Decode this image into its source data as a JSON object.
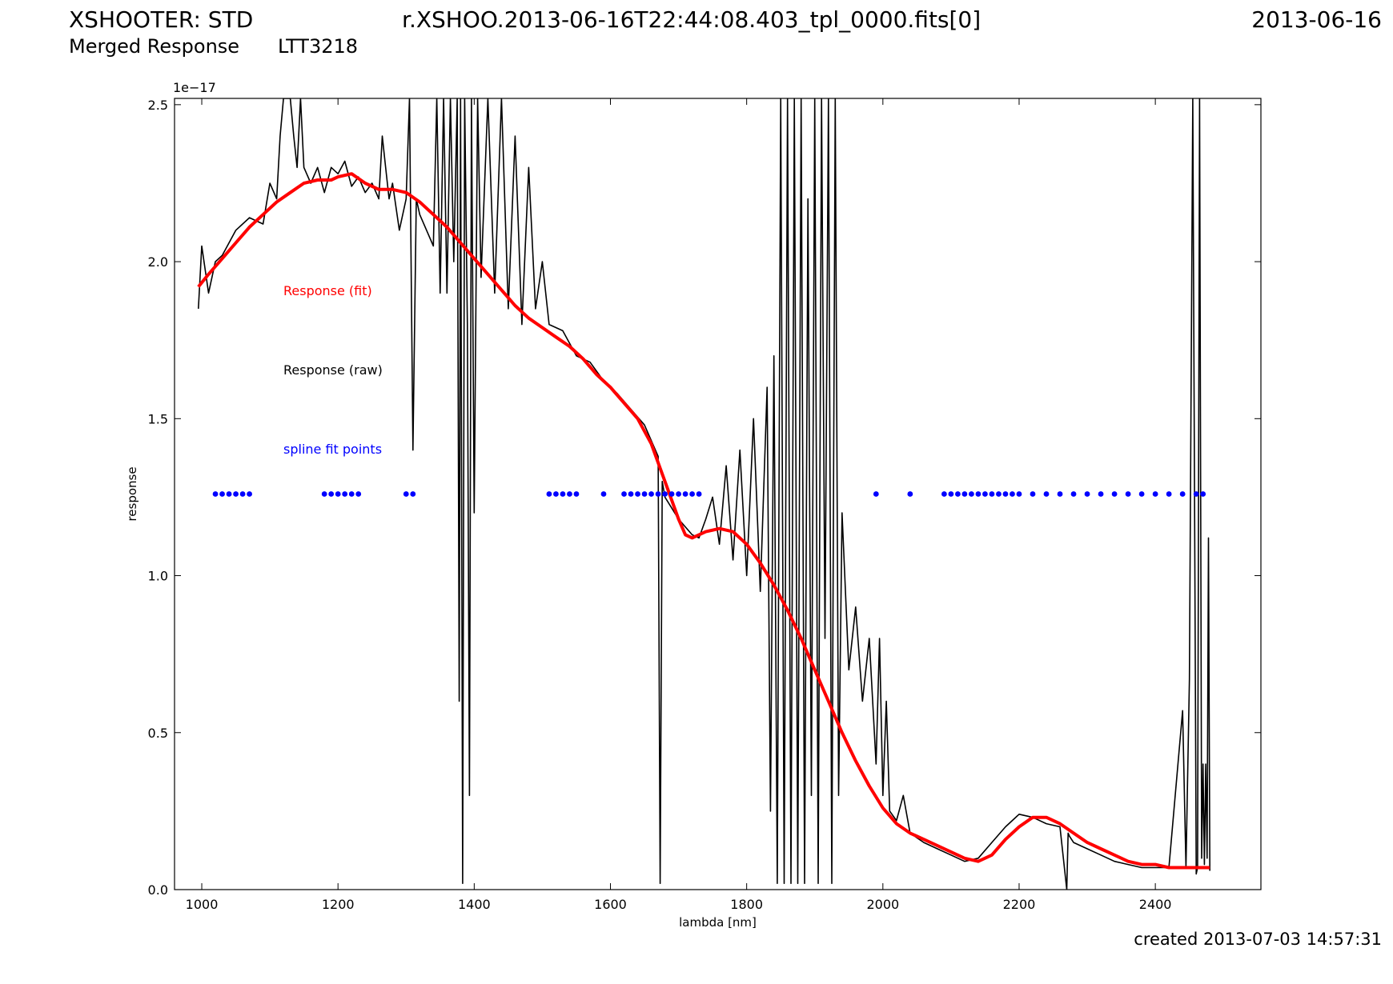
{
  "header": {
    "instrument": "XSHOOTER: STD",
    "filename": "r.XSHOO.2013-06-16T22:44:08.403_tpl_0000.fits[0]",
    "date": "2013-06-16",
    "subtitle": "Merged Response",
    "object": "LTT3218"
  },
  "footer": {
    "created": "created 2013-07-03 14:57:31"
  },
  "colors": {
    "fit": "#ff0000",
    "raw": "#000000",
    "points": "#0000ff"
  },
  "chart_data": {
    "type": "line",
    "xlabel": "lambda [nm]",
    "ylabel": "response",
    "y_multiplier_label": "1e−17",
    "xlim": [
      960,
      2555
    ],
    "ylim": [
      0,
      2.52
    ],
    "xticks": [
      1000,
      1200,
      1400,
      1600,
      1800,
      2000,
      2200,
      2400
    ],
    "yticks": [
      0.0,
      0.5,
      1.0,
      1.5,
      2.0,
      2.5
    ],
    "xtick_labels": [
      "1000",
      "1200",
      "1400",
      "1600",
      "1800",
      "2000",
      "2200",
      "2400"
    ],
    "ytick_labels": [
      "0.0",
      "0.5",
      "1.0",
      "1.5",
      "2.0",
      "2.5"
    ],
    "legend": [
      "Response (fit)",
      "Response (raw)",
      "spline fit points"
    ],
    "series": [
      {
        "name": "Response (fit)",
        "x": [
          995,
          1010,
          1030,
          1050,
          1070,
          1090,
          1110,
          1130,
          1150,
          1170,
          1190,
          1200,
          1220,
          1240,
          1260,
          1280,
          1300,
          1320,
          1340,
          1360,
          1380,
          1400,
          1420,
          1440,
          1460,
          1480,
          1500,
          1520,
          1540,
          1560,
          1580,
          1600,
          1620,
          1640,
          1660,
          1680,
          1700,
          1710,
          1720,
          1740,
          1760,
          1780,
          1800,
          1820,
          1840,
          1860,
          1880,
          1900,
          1920,
          1940,
          1960,
          1980,
          2000,
          2020,
          2040,
          2060,
          2080,
          2100,
          2120,
          2140,
          2160,
          2180,
          2200,
          2220,
          2240,
          2260,
          2280,
          2300,
          2320,
          2340,
          2360,
          2380,
          2400,
          2420,
          2440,
          2460,
          2480
        ],
        "y": [
          1.92,
          1.96,
          2.01,
          2.06,
          2.11,
          2.15,
          2.19,
          2.22,
          2.25,
          2.26,
          2.26,
          2.27,
          2.28,
          2.25,
          2.23,
          2.23,
          2.22,
          2.19,
          2.15,
          2.11,
          2.06,
          2.01,
          1.96,
          1.91,
          1.86,
          1.82,
          1.79,
          1.76,
          1.73,
          1.69,
          1.64,
          1.6,
          1.55,
          1.5,
          1.42,
          1.3,
          1.18,
          1.13,
          1.12,
          1.14,
          1.15,
          1.14,
          1.1,
          1.04,
          0.97,
          0.89,
          0.8,
          0.7,
          0.6,
          0.5,
          0.41,
          0.33,
          0.26,
          0.21,
          0.18,
          0.16,
          0.14,
          0.12,
          0.1,
          0.09,
          0.11,
          0.16,
          0.2,
          0.23,
          0.23,
          0.21,
          0.18,
          0.15,
          0.13,
          0.11,
          0.09,
          0.08,
          0.08,
          0.07,
          0.07,
          0.07,
          0.07
        ]
      },
      {
        "name": "Response (raw)",
        "x": [
          995,
          1000,
          1010,
          1020,
          1030,
          1050,
          1070,
          1090,
          1100,
          1110,
          1115,
          1120,
          1125,
          1130,
          1135,
          1140,
          1145,
          1150,
          1160,
          1170,
          1180,
          1190,
          1200,
          1210,
          1220,
          1230,
          1240,
          1250,
          1260,
          1265,
          1270,
          1275,
          1280,
          1290,
          1300,
          1305,
          1310,
          1315,
          1320,
          1330,
          1340,
          1345,
          1350,
          1355,
          1360,
          1365,
          1370,
          1375,
          1378,
          1380,
          1383,
          1386,
          1390,
          1393,
          1396,
          1400,
          1405,
          1410,
          1420,
          1430,
          1440,
          1450,
          1460,
          1470,
          1480,
          1490,
          1500,
          1510,
          1530,
          1550,
          1570,
          1590,
          1610,
          1630,
          1650,
          1670,
          1673,
          1676,
          1680,
          1700,
          1720,
          1730,
          1740,
          1750,
          1760,
          1770,
          1780,
          1790,
          1800,
          1810,
          1820,
          1830,
          1835,
          1840,
          1845,
          1850,
          1855,
          1860,
          1865,
          1870,
          1875,
          1880,
          1885,
          1890,
          1895,
          1900,
          1905,
          1910,
          1915,
          1920,
          1925,
          1930,
          1935,
          1940,
          1950,
          1960,
          1970,
          1980,
          1990,
          1995,
          2000,
          2005,
          2010,
          2020,
          2030,
          2040,
          2060,
          2080,
          2100,
          2120,
          2140,
          2160,
          2180,
          2200,
          2220,
          2240,
          2260,
          2270,
          2272,
          2274,
          2280,
          2300,
          2320,
          2340,
          2360,
          2380,
          2400,
          2420,
          2440,
          2445,
          2450,
          2455,
          2460,
          2462,
          2465,
          2468,
          2470,
          2472,
          2474,
          2476,
          2478,
          2480
        ],
        "y": [
          1.85,
          2.05,
          1.9,
          2.0,
          2.02,
          2.1,
          2.14,
          2.12,
          2.25,
          2.2,
          2.4,
          2.52,
          2.52,
          2.52,
          2.4,
          2.3,
          2.52,
          2.3,
          2.25,
          2.3,
          2.22,
          2.3,
          2.28,
          2.32,
          2.24,
          2.27,
          2.22,
          2.25,
          2.2,
          2.4,
          2.3,
          2.2,
          2.25,
          2.1,
          2.2,
          2.52,
          1.4,
          2.2,
          2.15,
          2.1,
          2.05,
          2.52,
          1.9,
          2.52,
          1.9,
          2.52,
          2.0,
          2.52,
          0.6,
          2.52,
          0.02,
          2.52,
          1.8,
          0.3,
          2.52,
          1.2,
          2.52,
          1.95,
          2.52,
          1.9,
          2.52,
          1.85,
          2.4,
          1.8,
          2.3,
          1.85,
          2.0,
          1.8,
          1.78,
          1.7,
          1.68,
          1.62,
          1.58,
          1.53,
          1.48,
          1.38,
          0.02,
          1.3,
          1.25,
          1.18,
          1.13,
          1.12,
          1.18,
          1.25,
          1.1,
          1.35,
          1.05,
          1.4,
          1.0,
          1.5,
          0.95,
          1.6,
          0.25,
          1.7,
          0.02,
          2.52,
          0.02,
          2.52,
          0.02,
          2.52,
          0.02,
          2.52,
          0.02,
          2.2,
          0.3,
          2.52,
          0.02,
          2.52,
          0.8,
          2.52,
          0.02,
          2.52,
          0.3,
          1.2,
          0.7,
          0.9,
          0.6,
          0.8,
          0.4,
          0.8,
          0.3,
          0.6,
          0.25,
          0.22,
          0.3,
          0.18,
          0.15,
          0.13,
          0.11,
          0.09,
          0.1,
          0.15,
          0.2,
          0.24,
          0.23,
          0.21,
          0.2,
          0.0,
          0.18,
          0.17,
          0.15,
          0.13,
          0.11,
          0.09,
          0.08,
          0.07,
          0.07,
          0.07,
          0.57,
          0.07,
          0.67,
          2.52,
          0.05,
          0.07,
          2.52,
          0.1,
          0.4,
          0.08,
          0.4,
          0.1,
          1.12,
          0.06
        ]
      },
      {
        "name": "spline fit points",
        "type": "scatter",
        "y_constant": 1.26,
        "x": [
          1020,
          1030,
          1040,
          1050,
          1060,
          1070,
          1180,
          1190,
          1200,
          1210,
          1220,
          1230,
          1300,
          1310,
          1510,
          1520,
          1530,
          1540,
          1550,
          1590,
          1620,
          1630,
          1640,
          1650,
          1660,
          1670,
          1680,
          1690,
          1700,
          1710,
          1720,
          1730,
          1990,
          2040,
          2090,
          2100,
          2110,
          2120,
          2130,
          2140,
          2150,
          2160,
          2170,
          2180,
          2190,
          2200,
          2220,
          2240,
          2260,
          2280,
          2300,
          2320,
          2340,
          2360,
          2380,
          2400,
          2420,
          2440,
          2460,
          2470
        ]
      }
    ]
  }
}
